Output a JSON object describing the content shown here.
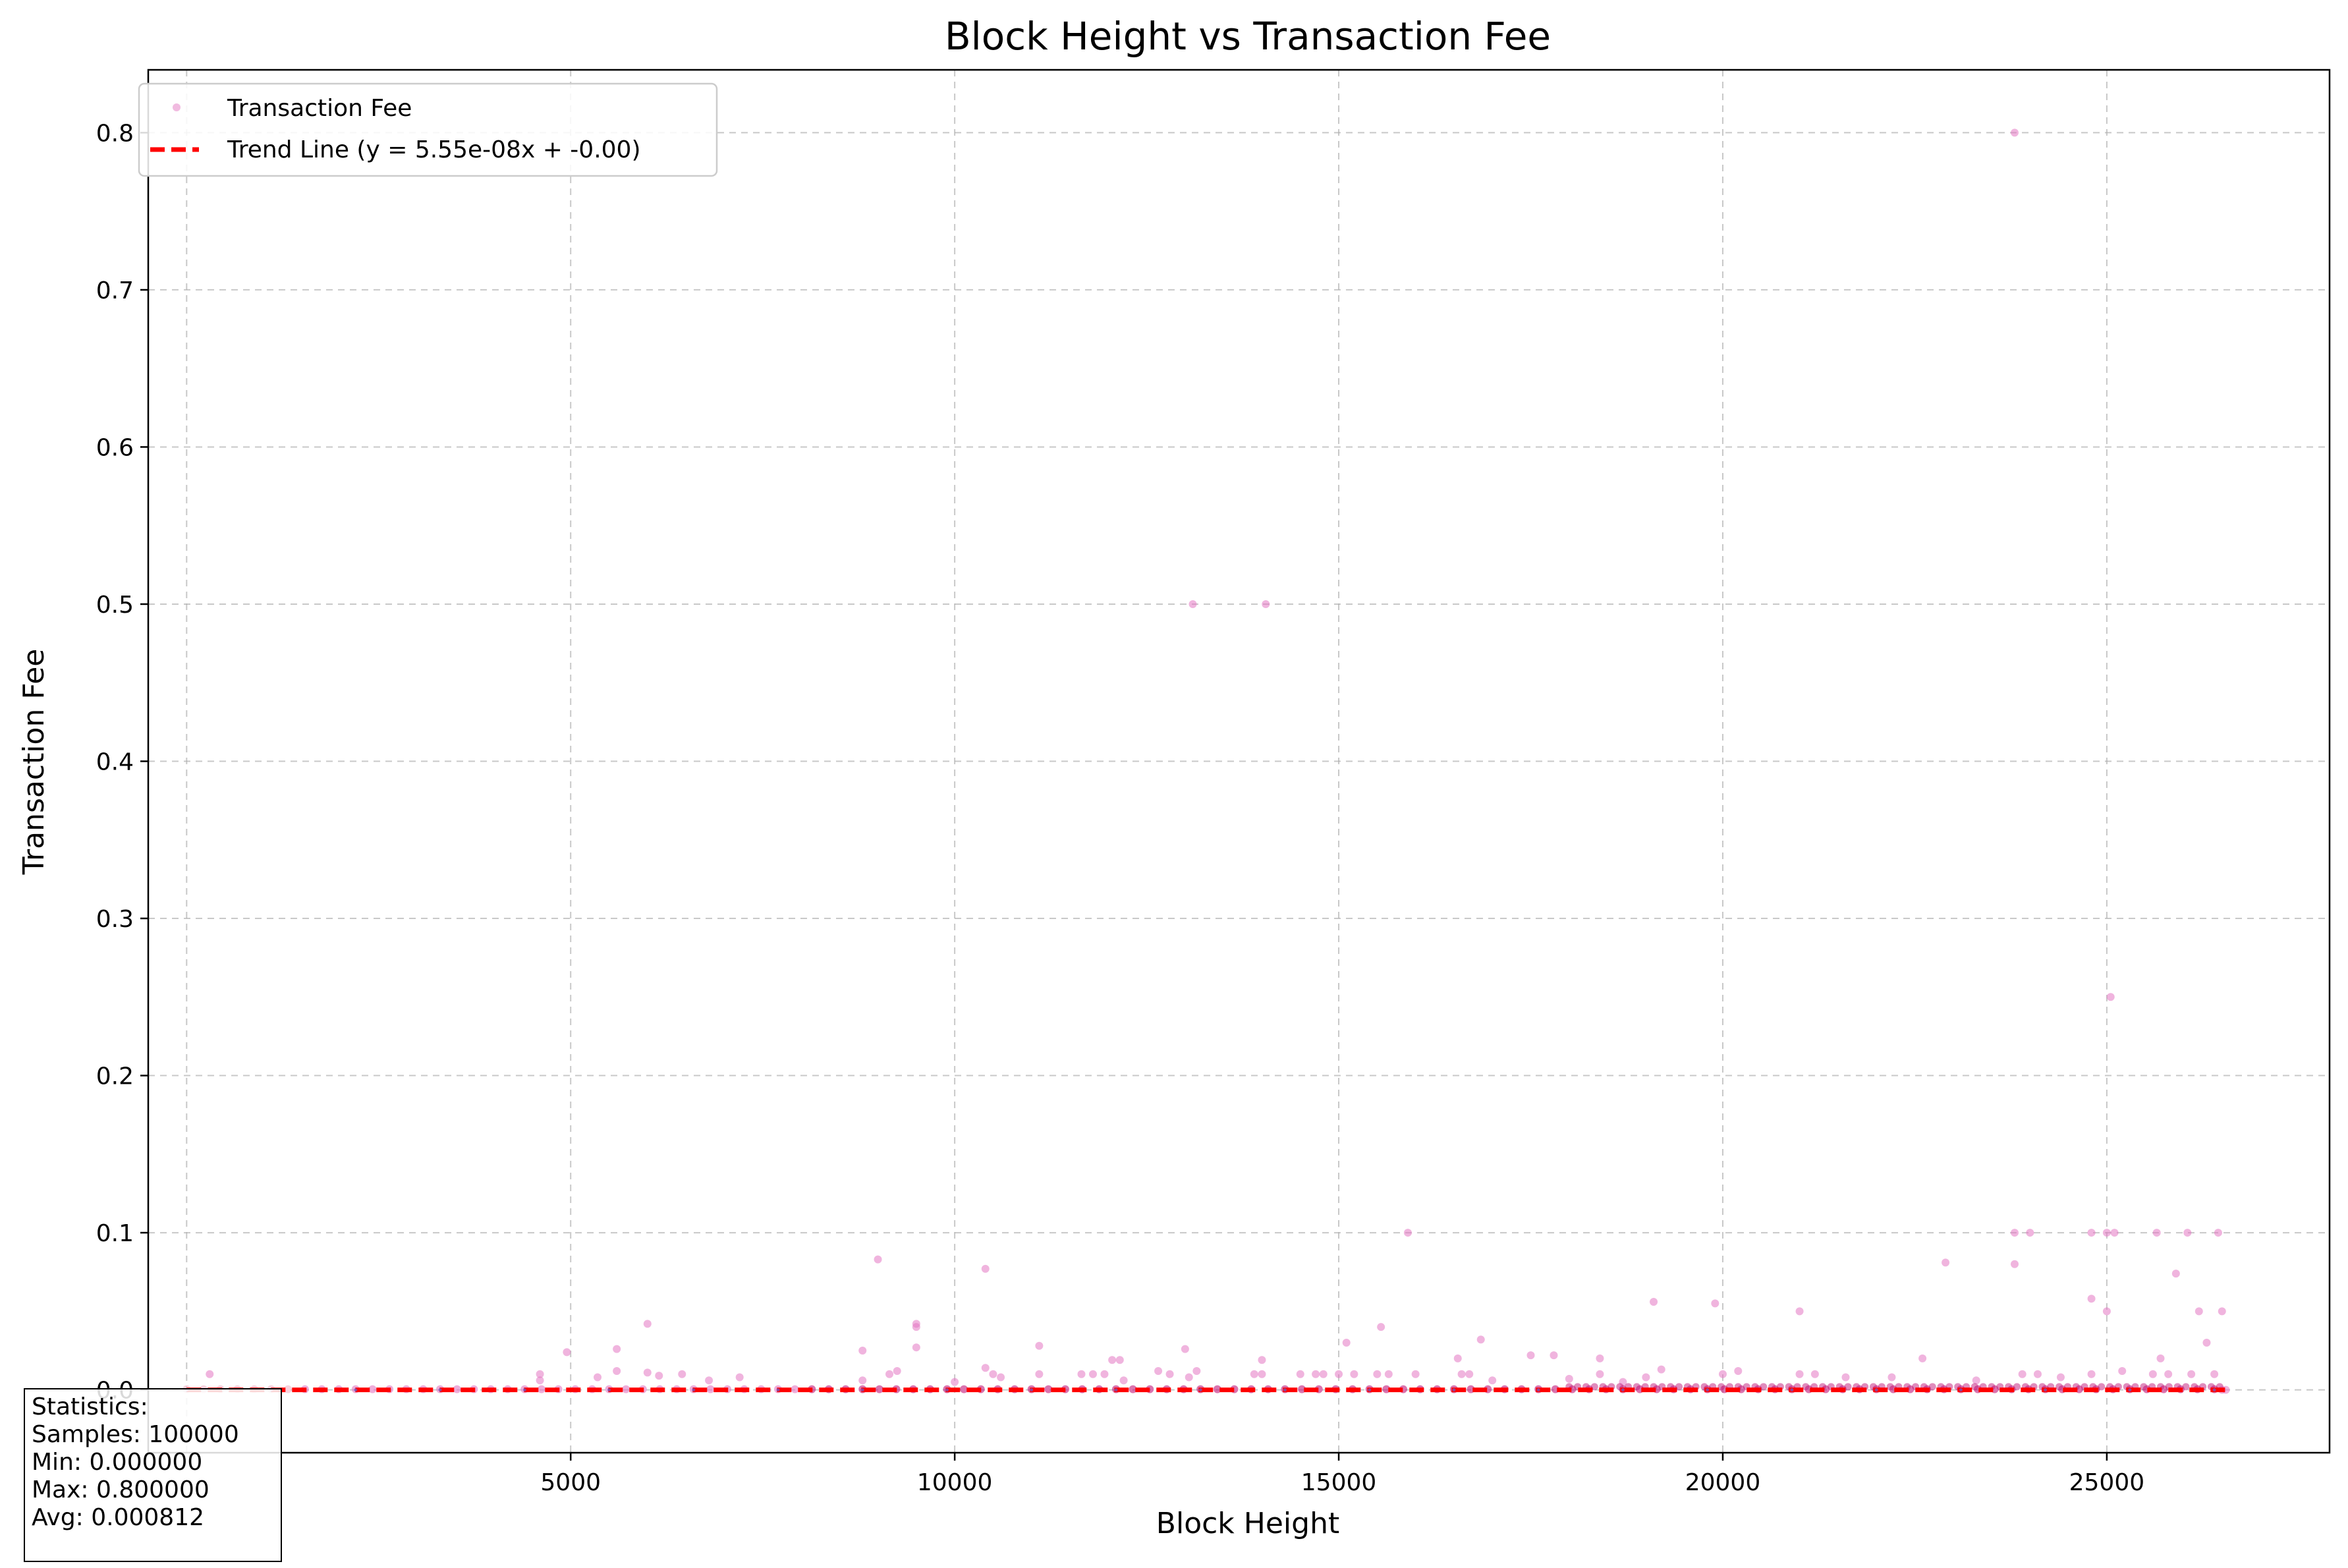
{
  "chart_data": {
    "type": "scatter",
    "title": "Block Height vs Transaction Fee",
    "xlabel": "Block Height",
    "ylabel": "Transaction Fee",
    "xlim": [
      -500,
      27900
    ],
    "ylim": [
      -0.04,
      0.84
    ],
    "xticks": [
      5000,
      10000,
      15000,
      20000,
      25000
    ],
    "yticks": [
      0.0,
      0.1,
      0.2,
      0.3,
      0.4,
      0.5,
      0.6,
      0.7,
      0.8
    ],
    "ytick_labels": [
      "0.0",
      "0.1",
      "0.2",
      "0.3",
      "0.4",
      "0.5",
      "0.6",
      "0.7",
      "0.8"
    ],
    "grid": true,
    "legend_position": "top-left",
    "colors": {
      "points": "#e377c2",
      "points_dense": "#c2187a",
      "trend": "#ff0000",
      "trend_dots": "#6a5acd"
    },
    "series": [
      {
        "name": "Transaction Fee",
        "points": [
          [
            300,
            0.01
          ],
          [
            4600,
            0.01
          ],
          [
            4600,
            0.006
          ],
          [
            4950,
            0.024
          ],
          [
            5350,
            0.008
          ],
          [
            5600,
            0.026
          ],
          [
            5600,
            0.012
          ],
          [
            6000,
            0.042
          ],
          [
            6000,
            0.011
          ],
          [
            6150,
            0.009
          ],
          [
            6450,
            0.01
          ],
          [
            6800,
            0.006
          ],
          [
            7200,
            0.008
          ],
          [
            8800,
            0.025
          ],
          [
            8800,
            0.006
          ],
          [
            9000,
            0.083
          ],
          [
            9150,
            0.01
          ],
          [
            9250,
            0.012
          ],
          [
            9500,
            0.042
          ],
          [
            9500,
            0.04
          ],
          [
            9500,
            0.027
          ],
          [
            10000,
            0.005
          ],
          [
            10400,
            0.077
          ],
          [
            10400,
            0.014
          ],
          [
            10500,
            0.01
          ],
          [
            10600,
            0.008
          ],
          [
            11100,
            0.028
          ],
          [
            11100,
            0.01
          ],
          [
            11650,
            0.01
          ],
          [
            11800,
            0.01
          ],
          [
            11950,
            0.01
          ],
          [
            12050,
            0.019
          ],
          [
            12150,
            0.019
          ],
          [
            12200,
            0.006
          ],
          [
            12650,
            0.012
          ],
          [
            12800,
            0.01
          ],
          [
            13000,
            0.026
          ],
          [
            13050,
            0.008
          ],
          [
            13100,
            0.5
          ],
          [
            13150,
            0.012
          ],
          [
            13900,
            0.01
          ],
          [
            14000,
            0.019
          ],
          [
            14050,
            0.5
          ],
          [
            14000,
            0.01
          ],
          [
            14500,
            0.01
          ],
          [
            14700,
            0.01
          ],
          [
            14800,
            0.01
          ],
          [
            15000,
            0.01
          ],
          [
            15100,
            0.03
          ],
          [
            15200,
            0.01
          ],
          [
            15500,
            0.01
          ],
          [
            15550,
            0.04
          ],
          [
            15650,
            0.01
          ],
          [
            15900,
            0.1
          ],
          [
            16000,
            0.01
          ],
          [
            16550,
            0.02
          ],
          [
            16600,
            0.01
          ],
          [
            16700,
            0.01
          ],
          [
            16850,
            0.032
          ],
          [
            17000,
            0.006
          ],
          [
            17500,
            0.022
          ],
          [
            17800,
            0.022
          ],
          [
            18000,
            0.007
          ],
          [
            18400,
            0.02
          ],
          [
            18400,
            0.01
          ],
          [
            18700,
            0.005
          ],
          [
            19000,
            0.008
          ],
          [
            19100,
            0.056
          ],
          [
            19200,
            0.013
          ],
          [
            19900,
            0.055
          ],
          [
            20000,
            0.01
          ],
          [
            20200,
            0.012
          ],
          [
            21000,
            0.05
          ],
          [
            21000,
            0.01
          ],
          [
            21200,
            0.01
          ],
          [
            21600,
            0.008
          ],
          [
            22200,
            0.008
          ],
          [
            22600,
            0.02
          ],
          [
            22900,
            0.081
          ],
          [
            23300,
            0.006
          ],
          [
            23800,
            0.8
          ],
          [
            23800,
            0.1
          ],
          [
            23800,
            0.08
          ],
          [
            23900,
            0.01
          ],
          [
            24000,
            0.1
          ],
          [
            24100,
            0.01
          ],
          [
            24400,
            0.008
          ],
          [
            24800,
            0.1
          ],
          [
            24800,
            0.058
          ],
          [
            24800,
            0.01
          ],
          [
            25000,
            0.1
          ],
          [
            25000,
            0.05
          ],
          [
            25050,
            0.25
          ],
          [
            25100,
            0.1
          ],
          [
            25200,
            0.012
          ],
          [
            25600,
            0.01
          ],
          [
            25650,
            0.1
          ],
          [
            25700,
            0.02
          ],
          [
            25800,
            0.01
          ],
          [
            25900,
            0.074
          ],
          [
            26050,
            0.1
          ],
          [
            26100,
            0.01
          ],
          [
            26200,
            0.05
          ],
          [
            26300,
            0.03
          ],
          [
            26400,
            0.01
          ],
          [
            26450,
            0.1
          ],
          [
            26500,
            0.05
          ],
          [
            26500,
            0.0
          ],
          [
            26550,
            0.0
          ]
        ]
      },
      {
        "name": "Trend Line (y = 5.55e-08x + -0.00)",
        "type": "line",
        "style": "dashed",
        "x": [
          0,
          26560
        ],
        "y": [
          0.0,
          0.0
        ]
      }
    ],
    "stats": {
      "heading": "Statistics:",
      "samples": "Samples: 100000",
      "min": "Min: 0.000000",
      "max": "Max: 0.800000",
      "avg": "Avg: 0.000812"
    }
  }
}
